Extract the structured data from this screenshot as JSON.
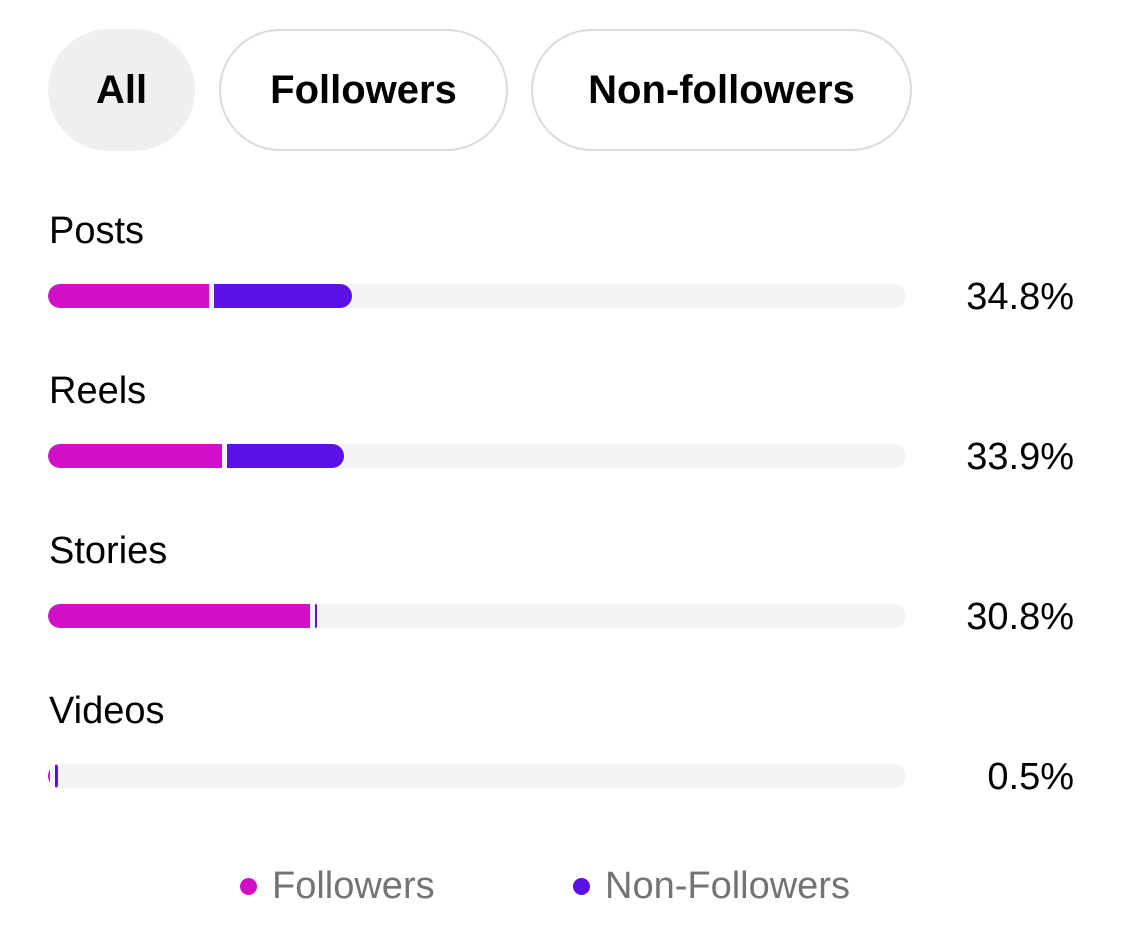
{
  "filters": {
    "all": "All",
    "followers": "Followers",
    "non_followers": "Non-followers",
    "selected": "All"
  },
  "colors": {
    "followers": "#d10fc9",
    "non_followers": "#5b10e6",
    "track": "#f2f3f5"
  },
  "chart_data": {
    "type": "bar",
    "orientation": "horizontal",
    "stacked": true,
    "categories": [
      "Posts",
      "Reels",
      "Stories",
      "Videos"
    ],
    "totals": [
      "34.8%",
      "33.9%",
      "30.8%",
      "0.5%"
    ],
    "series": [
      {
        "name": "Followers",
        "values": [
          18.8,
          20.3,
          30.5,
          0.2
        ]
      },
      {
        "name": "Non-Followers",
        "values": [
          16.0,
          13.6,
          0.3,
          0.3
        ]
      }
    ],
    "xlim": [
      0,
      100
    ],
    "grid": false,
    "legend": "bottom-center"
  }
}
